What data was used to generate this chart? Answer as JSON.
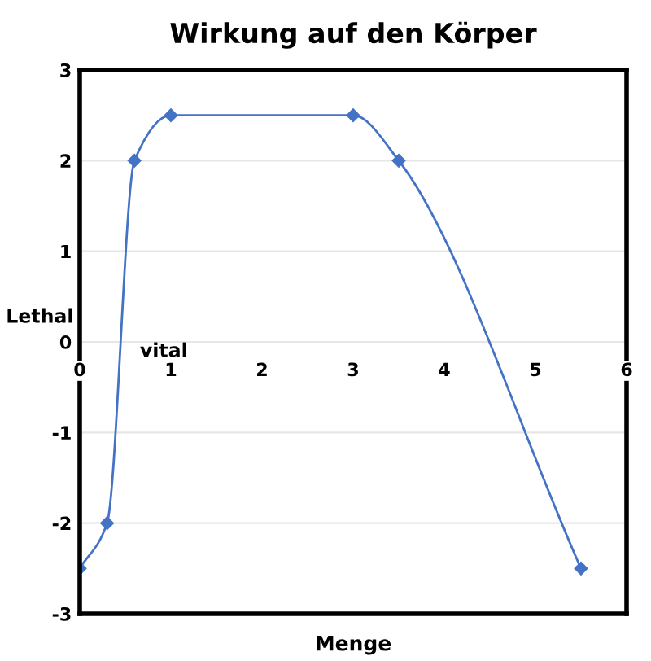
{
  "chart_data": {
    "type": "line",
    "title": "Wirkung auf den Körper",
    "xlabel": "Menge",
    "annotations": [
      "Lethal",
      "vital"
    ],
    "x": [
      0,
      0.3,
      0.6,
      1,
      3,
      3.5,
      5.5
    ],
    "series": [
      {
        "color": "#4472c4",
        "values": [
          -2.5,
          -2,
          2,
          2.5,
          2.5,
          2,
          -2.5
        ]
      }
    ],
    "xlim": [
      0,
      6
    ],
    "xticks": [
      0,
      1,
      2,
      3,
      4,
      5,
      6
    ],
    "ylim": [
      -3,
      3
    ],
    "yticks": [
      -3,
      -2,
      -1,
      0,
      1,
      2,
      3
    ],
    "grid": "y",
    "marker": "diamond",
    "line_style": "solid"
  }
}
